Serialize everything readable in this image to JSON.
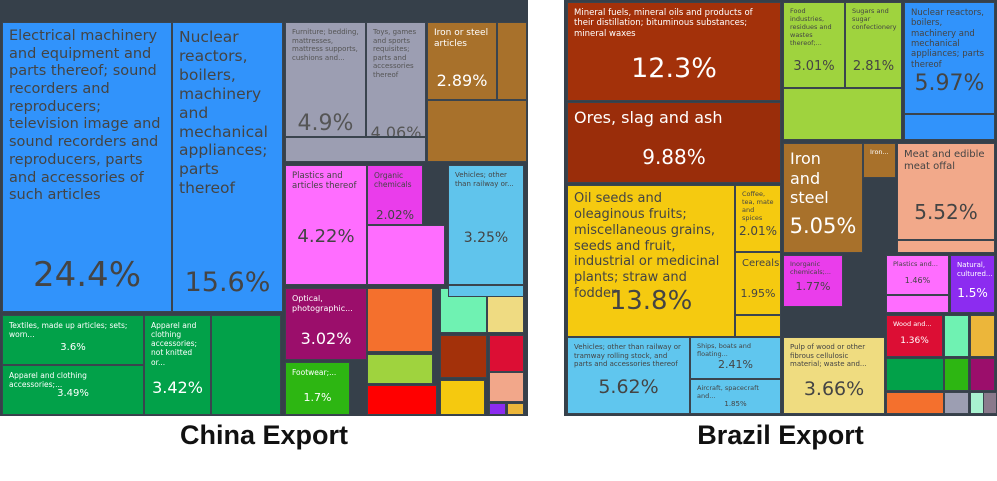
{
  "chart_data": [
    {
      "type": "treemap",
      "title": "China Export",
      "tiles": [
        {
          "label": "Electrical machinery and equipment and parts thereof; sound recorders and reproducers; television image and sound recorders and reproducers, parts and accessories of such articles",
          "value": "24.4%",
          "color": "#3193fb"
        },
        {
          "label": "Nuclear reactors, boilers, machinery and mechanical appliances; parts thereof",
          "value": "15.6%",
          "color": "#3193fb"
        },
        {
          "label": "Furniture; bedding, mattresses, mattress supports, cushions and...",
          "value": "4.9%",
          "color": "#9c9eb2"
        },
        {
          "label": "Toys, games and sports requisites; parts and accessories thereof",
          "value": "4.06%",
          "color": "#9c9eb2"
        },
        {
          "label": "Iron or steel articles",
          "value": "2.89%",
          "color": "#a8712b"
        },
        {
          "label": "Plastics and articles thereof",
          "value": "4.22%",
          "color": "#ff6dff"
        },
        {
          "label": "Organic chemicals",
          "value": "2.02%",
          "color": "#ea3deb"
        },
        {
          "label": "Vehicles; other than railway or...",
          "value": "3.25%",
          "color": "#60c4ec"
        },
        {
          "label": "Textiles, made up articles; sets; worn...",
          "value": "3.6%",
          "color": "#02a149"
        },
        {
          "label": "Apparel and clothing accessories;...",
          "value": "3.49%",
          "color": "#02a149"
        },
        {
          "label": "Apparel and clothing accessories; not knitted or...",
          "value": "3.42%",
          "color": "#02a149"
        },
        {
          "label": "Optical, photographic...",
          "value": "3.02%",
          "color": "#9b0e6b"
        },
        {
          "label": "Footwear;...",
          "value": "1.7%",
          "color": "#2db612"
        },
        {
          "color": "#9c9eb2"
        },
        {
          "color": "#a8712b"
        },
        {
          "color": "#a8712b"
        },
        {
          "color": "#02a149"
        },
        {
          "color": "#f4702d"
        },
        {
          "color": "#9fd33e"
        },
        {
          "color": "#ff0000"
        },
        {
          "color": "#6ff2b2"
        },
        {
          "color": "#efdb82"
        },
        {
          "color": "#a3310a"
        },
        {
          "color": "#dc0e34"
        },
        {
          "color": "#f5c90f"
        },
        {
          "color": "#f2a78a"
        },
        {
          "color": "#8c2cf0"
        },
        {
          "color": "#ecb63a"
        },
        {
          "color": "#ff6dff"
        },
        {
          "color": "#60c4ec"
        }
      ]
    },
    {
      "type": "treemap",
      "title": "Brazil Export",
      "tiles": [
        {
          "label": "Mineral fuels, mineral oils and products of their distillation; bituminous substances; mineral waxes",
          "value": "12.3%",
          "color": "#a3310a"
        },
        {
          "label": "Ores, slag and ash",
          "value": "9.88%",
          "color": "#9a2d0a"
        },
        {
          "label": "Oil seeds and oleaginous fruits; miscellaneous grains, seeds and fruit, industrial or medicinal plants; straw and fodder",
          "value": "13.8%",
          "color": "#f5ca10"
        },
        {
          "label": "Coffee, tea, mate and spices",
          "value": "2.01%",
          "color": "#f5ca10"
        },
        {
          "label": "Cereals",
          "value": "1.95%",
          "color": "#f5ca10"
        },
        {
          "label": "Vehicles; other than railway or tramway rolling stock, and parts and accessories thereof",
          "value": "5.62%",
          "color": "#60c6ee"
        },
        {
          "label": "Ships, boats and floating...",
          "value": "2.41%",
          "color": "#60c6ee"
        },
        {
          "label": "Aircraft, spacecraft and...",
          "value": "1.85%",
          "color": "#60c6ee"
        },
        {
          "label": "Food industries, residues and wastes thereof;...",
          "value": "3.01%",
          "color": "#9fd33e"
        },
        {
          "label": "Sugars and sugar confectionery",
          "value": "2.81%",
          "color": "#9fd33e"
        },
        {
          "label": "Nuclear reactors, boilers, machinery and mechanical appliances; parts thereof",
          "value": "5.97%",
          "color": "#3193fb"
        },
        {
          "label": "Iron and steel",
          "value": "5.05%",
          "color": "#a8712b"
        },
        {
          "label": "Iron...",
          "value": "",
          "color": "#a8712b"
        },
        {
          "label": "Meat and edible meat offal",
          "value": "5.52%",
          "color": "#f2a98a"
        },
        {
          "label": "Inorganic chemicals;...",
          "value": "1.77%",
          "color": "#ea3deb"
        },
        {
          "label": "Plastics and...",
          "value": "1.46%",
          "color": "#ff6dff"
        },
        {
          "label": "Natural, cultured...",
          "value": "1.5%",
          "color": "#8c2cf0"
        },
        {
          "label": "Pulp of wood or other fibrous cellulosic material; waste and...",
          "value": "3.66%",
          "color": "#efdc80"
        },
        {
          "label": "Wood and...",
          "value": "1.36%",
          "color": "#dc0e34"
        },
        {
          "color": "#9fd33e"
        },
        {
          "color": "#f5ca10"
        },
        {
          "color": "#6ff2b2"
        },
        {
          "color": "#ecb63a"
        },
        {
          "color": "#02a149"
        },
        {
          "color": "#2db612"
        },
        {
          "color": "#9b0e6b"
        },
        {
          "color": "#f4702d"
        },
        {
          "color": "#9c9eb2"
        },
        {
          "color": "#a8f2d0"
        },
        {
          "color": "#8a7a8c"
        },
        {
          "color": "#3193fb"
        },
        {
          "color": "#f2a98a"
        },
        {
          "color": "#ff6dff"
        }
      ]
    }
  ]
}
